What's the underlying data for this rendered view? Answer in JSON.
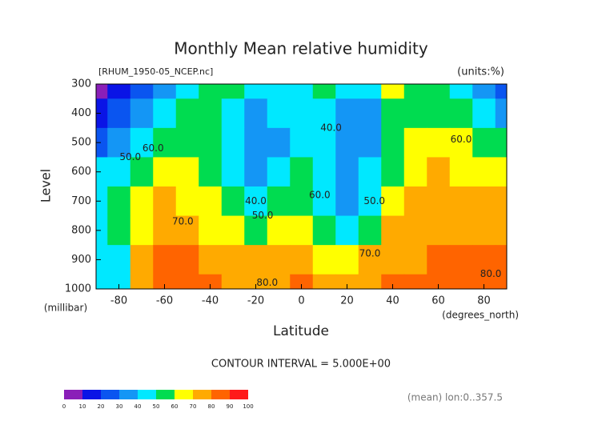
{
  "chart_data": {
    "type": "contour",
    "title": "Monthly Mean relative humidity",
    "subtitle": "[RHUM_1950-05_NCEP.nc]",
    "units": "(units:%)",
    "y_label": "Level",
    "y_unit": "(millibar)",
    "x_label": "Latitude",
    "x_unit": "(degrees_north)",
    "footer": "CONTOUR INTERVAL = 5.000E+00",
    "note": "(mean) lon:0..357.5",
    "x": [
      -90,
      -80,
      -70,
      -60,
      -50,
      -40,
      -30,
      -20,
      -10,
      0,
      10,
      20,
      30,
      40,
      50,
      60,
      70,
      80,
      90
    ],
    "levels": [
      300,
      400,
      500,
      600,
      700,
      800,
      900,
      1000
    ],
    "values": [
      [
        5,
        15,
        25,
        30,
        40,
        55,
        50,
        40,
        45,
        45,
        50,
        40,
        45,
        60,
        55,
        55,
        45,
        30,
        20
      ],
      [
        15,
        25,
        35,
        45,
        55,
        55,
        45,
        35,
        40,
        45,
        40,
        32,
        38,
        55,
        58,
        55,
        50,
        40,
        35
      ],
      [
        20,
        35,
        45,
        52,
        58,
        55,
        40,
        30,
        38,
        48,
        42,
        30,
        38,
        55,
        65,
        65,
        60,
        55,
        55
      ],
      [
        40,
        45,
        50,
        65,
        62,
        58,
        42,
        35,
        40,
        50,
        44,
        32,
        40,
        58,
        68,
        70,
        66,
        65,
        62
      ],
      [
        45,
        50,
        60,
        72,
        68,
        60,
        50,
        42,
        50,
        57,
        46,
        38,
        48,
        62,
        72,
        73,
        72,
        70,
        70
      ],
      [
        45,
        50,
        65,
        74,
        72,
        66,
        62,
        58,
        64,
        68,
        52,
        45,
        58,
        70,
        76,
        75,
        76,
        76,
        75
      ],
      [
        40,
        45,
        70,
        82,
        82,
        76,
        72,
        72,
        74,
        75,
        60,
        62,
        70,
        76,
        78,
        80,
        82,
        82,
        80
      ],
      [
        40,
        45,
        74,
        88,
        86,
        80,
        77,
        76,
        77,
        80,
        78,
        76,
        78,
        80,
        82,
        85,
        88,
        85,
        82
      ]
    ],
    "xlim": [
      -90,
      90
    ],
    "ylim": [
      1000,
      300
    ],
    "xticks": [
      -80,
      -60,
      -40,
      -20,
      0,
      20,
      40,
      60,
      80
    ],
    "yticks": [
      300,
      400,
      500,
      600,
      700,
      800,
      900,
      1000
    ],
    "color_levels": [
      0,
      10,
      20,
      30,
      40,
      50,
      60,
      70,
      80,
      90,
      100
    ],
    "colors": [
      "#8a1fb8",
      "#0a14e6",
      "#0a55f0",
      "#1496f5",
      "#00e8ff",
      "#00dc50",
      "#ffff00",
      "#ffaa00",
      "#ff6400",
      "#ff1a1a"
    ],
    "annotations": [
      {
        "text": "50.0",
        "x": -75,
        "y": 550
      },
      {
        "text": "60.0",
        "x": -65,
        "y": 520
      },
      {
        "text": "40.0",
        "x": -20,
        "y": 700
      },
      {
        "text": "50.0",
        "x": -17,
        "y": 750
      },
      {
        "text": "70.0",
        "x": -52,
        "y": 770
      },
      {
        "text": "60.0",
        "x": 8,
        "y": 680
      },
      {
        "text": "40.0",
        "x": 13,
        "y": 450
      },
      {
        "text": "50.0",
        "x": 32,
        "y": 700
      },
      {
        "text": "70.0",
        "x": 30,
        "y": 880
      },
      {
        "text": "80.0",
        "x": -15,
        "y": 980
      },
      {
        "text": "60.0",
        "x": 70,
        "y": 490
      },
      {
        "text": "80.0",
        "x": 83,
        "y": 950
      }
    ]
  }
}
